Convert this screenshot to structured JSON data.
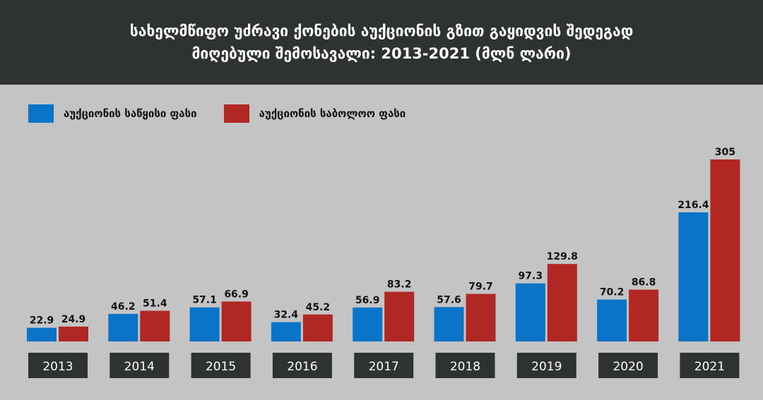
{
  "chart_data": {
    "type": "bar",
    "title_lines": [
      "სახელმწიფო უძრავი ქონების აუქციონის გზით გაყიდვის შედეგად",
      "მიღებული შემოსავალი: 2013-2021 (მლნ ლარი)"
    ],
    "categories": [
      "2013",
      "2014",
      "2015",
      "2016",
      "2017",
      "2018",
      "2019",
      "2020",
      "2021"
    ],
    "series": [
      {
        "name": "აუქციონის საწყისი ფასი",
        "color": "#0a74c9",
        "values": [
          22.9,
          46.2,
          57.1,
          32.4,
          56.9,
          57.6,
          97.3,
          70.2,
          216.4
        ]
      },
      {
        "name": "აუქციონის საბოლოო ფასი",
        "color": "#b02724",
        "values": [
          24.9,
          51.4,
          66.9,
          45.2,
          83.2,
          79.7,
          129.8,
          86.8,
          305
        ]
      }
    ],
    "ylim": [
      0,
      305
    ],
    "grid": false,
    "legend_position": "top-left",
    "colors": {
      "header_bg": "#2f3233",
      "background": "#c4c4c4",
      "year_box": "#2f3233"
    }
  }
}
